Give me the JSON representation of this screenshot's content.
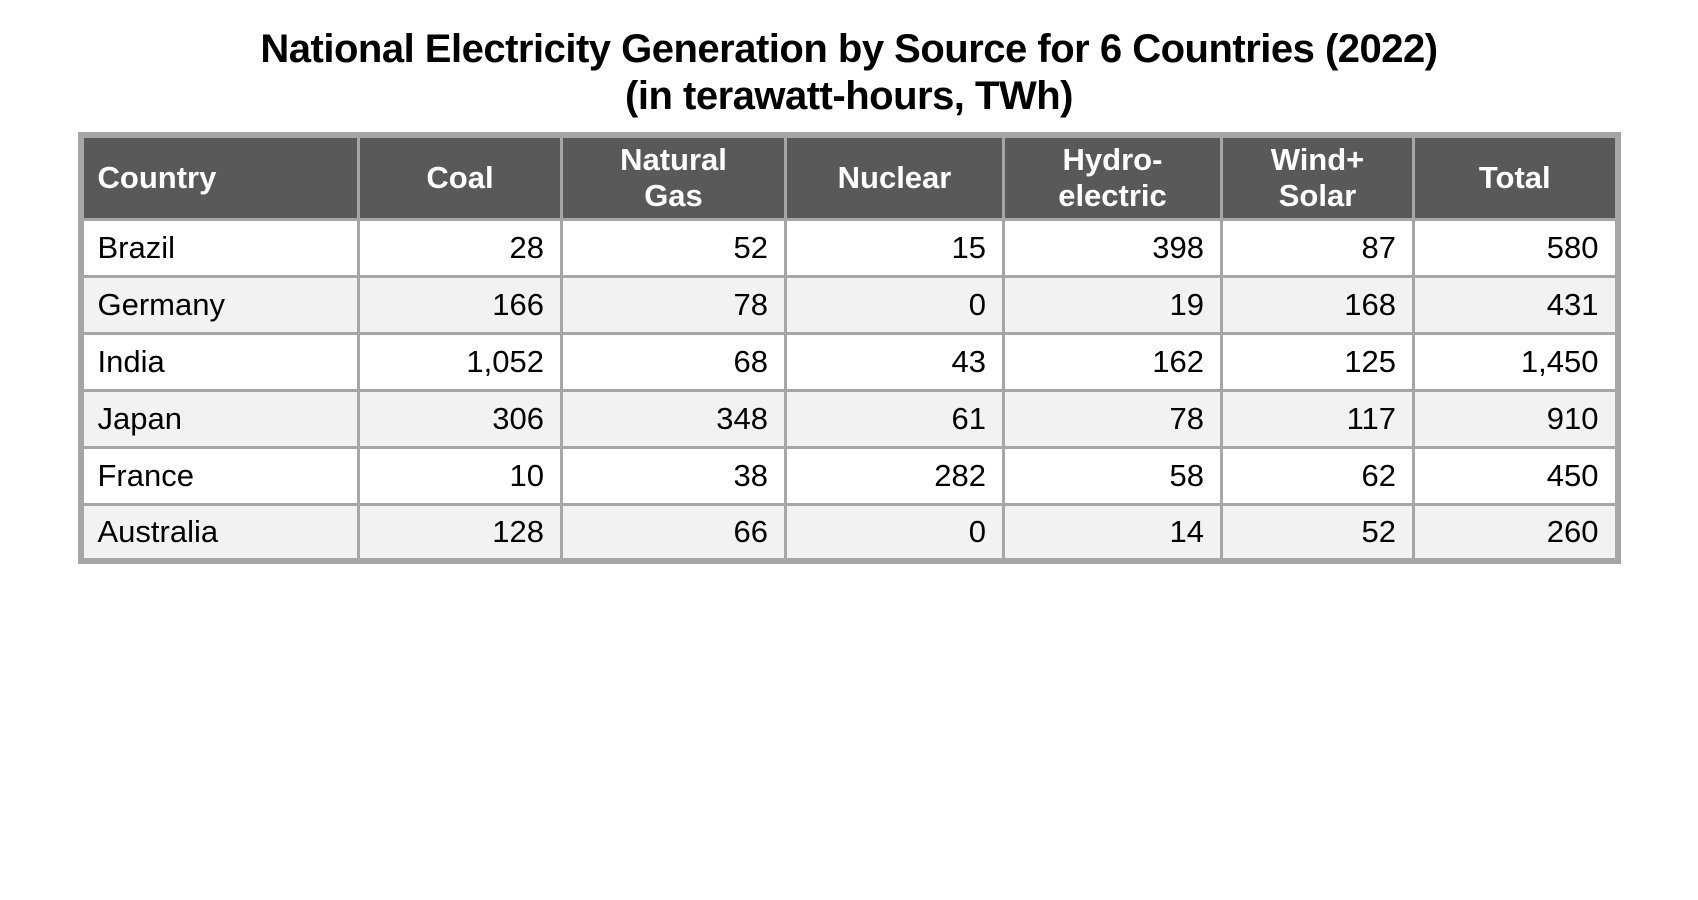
{
  "title": {
    "line1": "National Electricity Generation by Source for 6 Countries (2022)",
    "line2": "(in terawatt-hours, TWh)"
  },
  "table": {
    "columns": [
      "Country",
      "Coal",
      "Natural\nGas",
      "Nuclear",
      "Hydro-\nelectric",
      "Wind+\nSolar",
      "Total"
    ],
    "rows": [
      {
        "cells": [
          "Brazil",
          "28",
          "52",
          "15",
          "398",
          "87",
          "580"
        ]
      },
      {
        "cells": [
          "Germany",
          "166",
          "78",
          "0",
          "19",
          "168",
          "431"
        ]
      },
      {
        "cells": [
          "India",
          "1,052",
          "68",
          "43",
          "162",
          "125",
          "1,450"
        ]
      },
      {
        "cells": [
          "Japan",
          "306",
          "348",
          "61",
          "78",
          "117",
          "910"
        ]
      },
      {
        "cells": [
          "France",
          "10",
          "38",
          "282",
          "58",
          "62",
          "450"
        ]
      },
      {
        "cells": [
          "Australia",
          "128",
          "66",
          "0",
          "14",
          "52",
          "260"
        ]
      }
    ]
  },
  "colors": {
    "header_bg": "#595959",
    "header_text": "#ffffff",
    "border": "#a6a6a6",
    "row_alt_bg": "#f2f2f2",
    "row_bg": "#ffffff",
    "text": "#000000"
  },
  "chart_data": {
    "type": "table",
    "title": "National Electricity Generation by Source for 6 Countries (2022) (in terawatt-hours, TWh)",
    "units": "TWh",
    "columns": [
      "Country",
      "Coal",
      "Natural Gas",
      "Nuclear",
      "Hydro-electric",
      "Wind+Solar",
      "Total"
    ],
    "rows": [
      [
        "Brazil",
        28,
        52,
        15,
        398,
        87,
        580
      ],
      [
        "Germany",
        166,
        78,
        0,
        19,
        168,
        431
      ],
      [
        "India",
        1052,
        68,
        43,
        162,
        125,
        1450
      ],
      [
        "Japan",
        306,
        348,
        61,
        78,
        117,
        910
      ],
      [
        "France",
        10,
        38,
        282,
        58,
        62,
        450
      ],
      [
        "Australia",
        128,
        66,
        0,
        14,
        52,
        260
      ]
    ]
  }
}
